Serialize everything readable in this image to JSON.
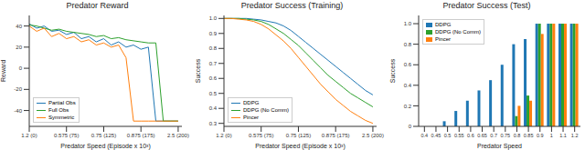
{
  "chart_data": [
    {
      "type": "line",
      "title": "Predator Reward",
      "x_label": "Predator Speed (Episode x 10³)",
      "y_label": "Reward",
      "x": [
        0,
        10,
        20,
        30,
        40,
        50,
        60,
        70,
        80,
        90,
        100,
        110,
        120,
        130,
        140,
        150,
        160,
        170,
        180,
        190,
        200
      ],
      "series": [
        {
          "name": "Partial Obs",
          "color": "#1f77b4",
          "values": [
            42,
            38,
            40,
            35,
            36,
            32,
            34,
            28,
            30,
            25,
            28,
            22,
            25,
            20,
            22,
            18,
            20,
            -50,
            -50,
            -50,
            -50
          ]
        },
        {
          "name": "Full Obs",
          "color": "#2ca02c",
          "values": [
            41,
            40,
            38,
            36,
            37,
            35,
            34,
            33,
            32,
            30,
            31,
            28,
            29,
            27,
            26,
            25,
            24,
            24,
            -50,
            -50,
            -50
          ]
        },
        {
          "name": "Symmetric",
          "color": "#ff7f0e",
          "values": [
            40,
            35,
            38,
            30,
            33,
            28,
            30,
            25,
            27,
            22,
            24,
            20,
            22,
            10,
            -50,
            -50,
            -50,
            -50,
            -50,
            -50,
            -50
          ]
        }
      ],
      "xlim": [
        0,
        205
      ],
      "xticks": [
        {
          "value": 0,
          "label": "1.2 (0)"
        },
        {
          "value": 50,
          "label": "0.575 (75)"
        },
        {
          "value": 100,
          "label": "0.75 (125)"
        },
        {
          "value": 150,
          "label": "0.875 (175)"
        },
        {
          "value": 200,
          "label": "2.5 (200)"
        }
      ],
      "ylim": [
        -55,
        50
      ],
      "yticks": [
        -40,
        -20,
        0,
        20,
        40
      ],
      "legend": "lower left"
    },
    {
      "type": "line",
      "title": "Predator Success (Training)",
      "x_label": "Predator Speed (Episode x 10³)",
      "y_label": "Success",
      "x": [
        0,
        10,
        20,
        30,
        40,
        50,
        60,
        70,
        80,
        90,
        100,
        110,
        120,
        130,
        140,
        150,
        160,
        170,
        180,
        190,
        200
      ],
      "series": [
        {
          "name": "DDPG",
          "color": "#1f77b4",
          "values": [
            1,
            1,
            1,
            1,
            0.995,
            0.99,
            0.98,
            0.97,
            0.95,
            0.92,
            0.88,
            0.84,
            0.8,
            0.76,
            0.72,
            0.68,
            0.64,
            0.6,
            0.56,
            0.52,
            0.49
          ]
        },
        {
          "name": "DDPG (No Comm)",
          "color": "#2ca02c",
          "values": [
            1,
            1,
            1,
            0.995,
            0.99,
            0.98,
            0.96,
            0.93,
            0.9,
            0.86,
            0.82,
            0.77,
            0.72,
            0.67,
            0.62,
            0.58,
            0.54,
            0.5,
            0.47,
            0.44,
            0.41
          ]
        },
        {
          "name": "Pincer",
          "color": "#ff7f0e",
          "values": [
            1,
            1,
            0.995,
            0.99,
            0.98,
            0.96,
            0.93,
            0.89,
            0.85,
            0.8,
            0.74,
            0.68,
            0.62,
            0.56,
            0.51,
            0.46,
            0.42,
            0.38,
            0.35,
            0.32,
            0.3
          ]
        }
      ],
      "xlim": [
        0,
        205
      ],
      "xticks": [
        {
          "value": 0,
          "label": "1.2 (0)"
        },
        {
          "value": 50,
          "label": "0.575 (75)"
        },
        {
          "value": 100,
          "label": "0.75 (125)"
        },
        {
          "value": 150,
          "label": "0.875 (175)"
        },
        {
          "value": 200,
          "label": "2.5 (200)"
        }
      ],
      "ylim": [
        0.28,
        1.02
      ],
      "yticks": [
        0.3,
        0.4,
        0.5,
        0.6,
        0.7,
        0.8,
        0.9,
        {
          "value": 1,
          "label": "1.0"
        }
      ],
      "legend": "lower left"
    },
    {
      "type": "bar",
      "title": "Predator Success (Test)",
      "x_label": "Predator Speed",
      "y_label": "Success",
      "categories": [
        "0.4",
        "0.45",
        "0.5",
        "0.55",
        "0.6",
        "0.65",
        "0.7",
        "0.75",
        "0.8",
        "0.85",
        "0.9",
        "1",
        "1.1",
        "1.2"
      ],
      "series": [
        {
          "name": "DDPG",
          "color": "#1f77b4",
          "values": [
            0,
            0,
            0.05,
            0.15,
            0.25,
            0.35,
            0.45,
            0.6,
            0.8,
            0.85,
            1,
            1,
            1,
            1
          ]
        },
        {
          "name": "DDPG (No Comm)",
          "color": "#2ca02c",
          "values": [
            0,
            0,
            0,
            0,
            0,
            0,
            0,
            0,
            0.1,
            0.3,
            1,
            1,
            1,
            1
          ]
        },
        {
          "name": "Pincer",
          "color": "#ff7f0e",
          "values": [
            0,
            0,
            0,
            0,
            0,
            0,
            0,
            0,
            0.2,
            0.25,
            0.9,
            1,
            1,
            1
          ]
        }
      ],
      "ylim": [
        0,
        1.08
      ],
      "yticks": [
        0,
        0.2,
        0.4,
        0.6,
        0.8,
        {
          "value": 1,
          "label": "1.0"
        }
      ],
      "legend": "upper left"
    }
  ]
}
